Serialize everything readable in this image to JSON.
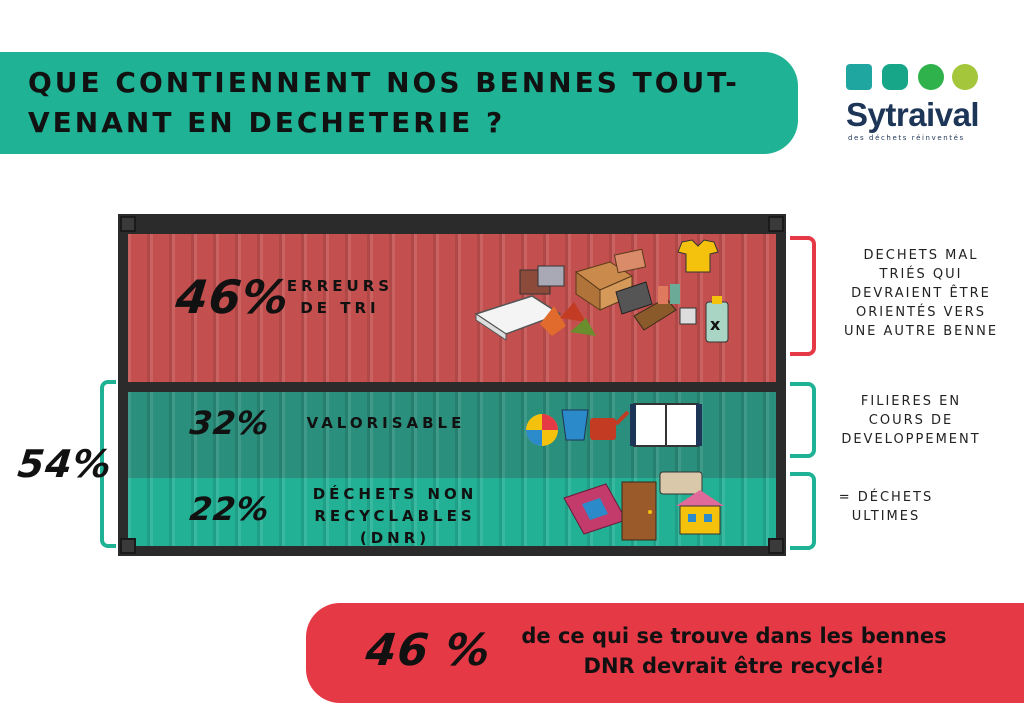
{
  "header": {
    "title": "QUE CONTIENNENT NOS BENNES TOUT-\nVENANT EN DECHETERIE ?"
  },
  "logo": {
    "name": "Sytraival",
    "tagline": "des déchets réinventés",
    "colors": [
      "#1fa6a0",
      "#18a689",
      "#2fb24c",
      "#a3c63a"
    ]
  },
  "sections": [
    {
      "percent": "46%",
      "label": "ERREURS\nDE TRI",
      "note": "DECHETS MAL\nTRIÉS QUI\nDEVRAIENT ÊTRE\nORIENTÉS VERS\nUNE AUTRE BENNE",
      "color": "#c3504e",
      "bracket_color": "#e63946"
    },
    {
      "percent": "32%",
      "label": "VALORISABLE",
      "note": "FILIERES EN\nCOURS DE\nDEVELOPPEMENT",
      "color": "#2a8f7c",
      "bracket_color": "#1fb294"
    },
    {
      "percent": "22%",
      "label": "DÉCHETS NON\nRECYCLABLES (DNR)",
      "note": "= DÉCHETS\nULTIMES",
      "color": "#22b194",
      "bracket_color": "#1fb294"
    }
  ],
  "combined_percent": "54%",
  "footer": {
    "percent": "46 %",
    "text": "de ce qui se trouve dans les bennes\nDNR devrait être recyclé!"
  }
}
